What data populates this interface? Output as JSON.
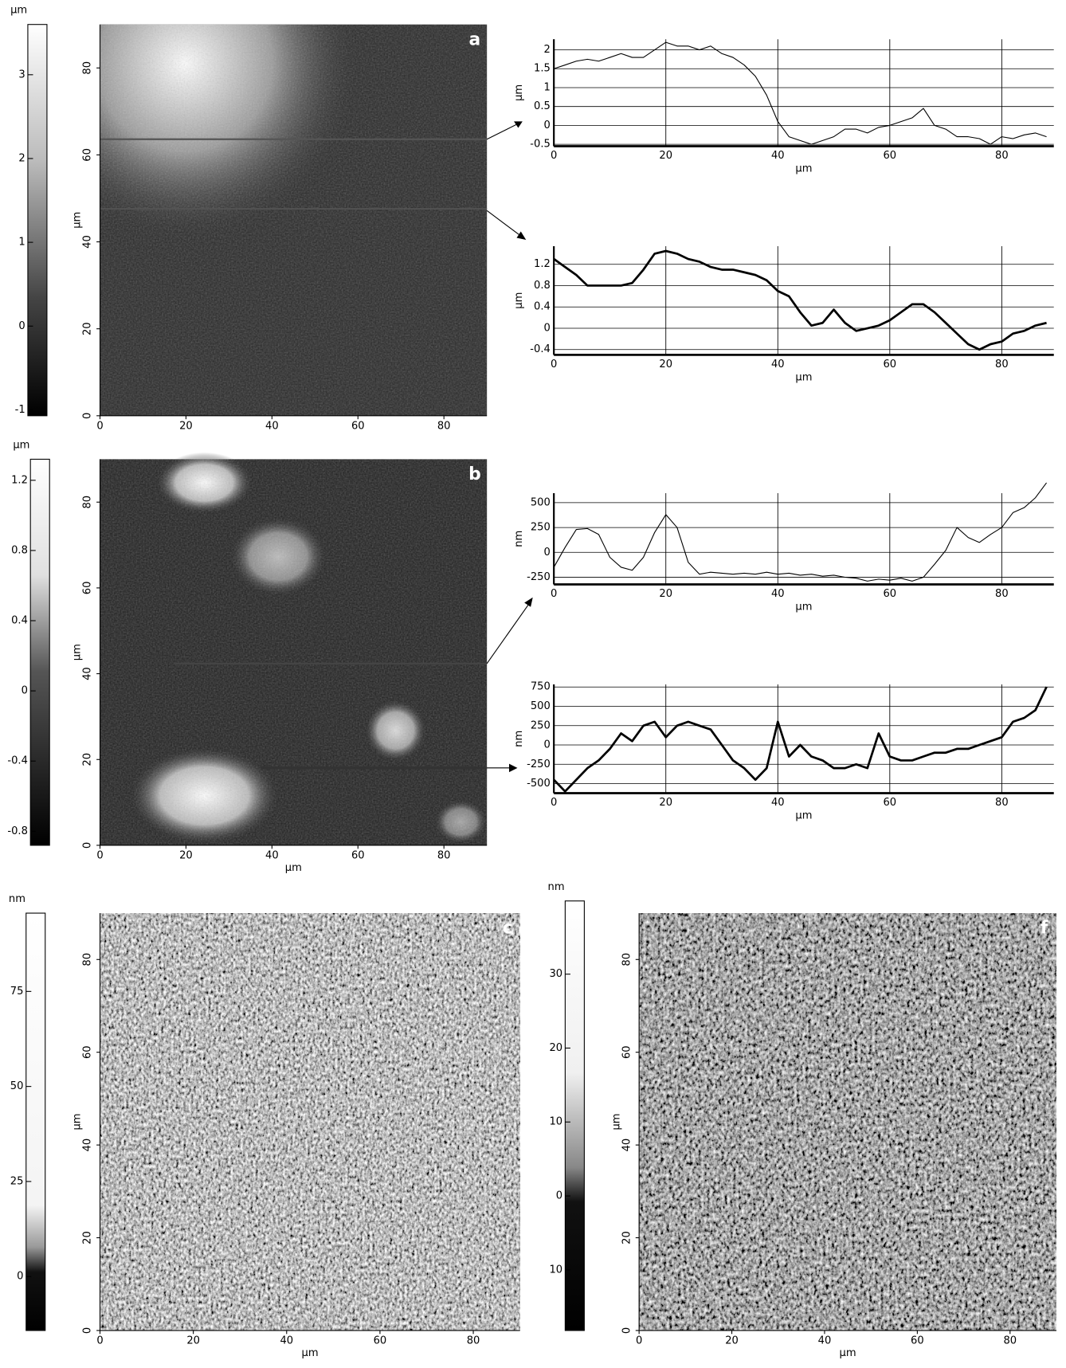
{
  "chart_data": [
    {
      "type": "colorbar",
      "unit": "µm",
      "ylim": [
        -1.07,
        3.6
      ],
      "yticks": [
        3,
        2,
        1,
        0,
        -1
      ]
    },
    {
      "type": "image",
      "label": "a",
      "ylabel": "µm",
      "xlim": [
        0,
        90
      ],
      "ylim": [
        0,
        90
      ],
      "xticks": [
        0,
        20,
        40,
        60,
        80
      ],
      "yticks": [
        0,
        20,
        40,
        60,
        80
      ]
    },
    {
      "type": "line",
      "xlabel": "µm",
      "ylabel": "µm",
      "xlim": [
        0,
        89.3
      ],
      "ylim": [
        -0.55,
        2.28
      ],
      "xticks": [
        0,
        20,
        40,
        60,
        80
      ],
      "yticks": [
        2,
        1.5,
        1,
        0.5,
        0,
        -0.5
      ],
      "grid": true,
      "x": [
        0,
        2,
        4,
        6,
        8,
        10,
        12,
        14,
        16,
        18,
        20,
        22,
        24,
        26,
        28,
        30,
        32,
        34,
        36,
        38,
        40,
        42,
        44,
        46,
        48,
        50,
        52,
        54,
        56,
        58,
        60,
        62,
        64,
        66,
        68,
        70,
        72,
        74,
        76,
        78,
        80,
        82,
        84,
        86,
        88
      ],
      "series": [
        {
          "color": "#000000",
          "values": [
            1.5,
            1.6,
            1.7,
            1.75,
            1.7,
            1.8,
            1.9,
            1.8,
            1.8,
            2.0,
            2.2,
            2.1,
            2.1,
            2.0,
            2.1,
            1.9,
            1.8,
            1.6,
            1.3,
            0.8,
            0.1,
            -0.3,
            -0.4,
            -0.5,
            -0.4,
            -0.3,
            -0.1,
            -0.1,
            -0.2,
            -0.05,
            0.0,
            0.1,
            0.2,
            0.45,
            0.0,
            -0.1,
            -0.3,
            -0.3,
            -0.35,
            -0.5,
            -0.3,
            -0.35,
            -0.25,
            -0.2,
            -0.3
          ]
        }
      ]
    },
    {
      "type": "line",
      "xlabel": "µm",
      "ylabel": "µm",
      "xlim": [
        0,
        89.3
      ],
      "ylim": [
        -0.5,
        1.54
      ],
      "xticks": [
        0,
        20,
        40,
        60,
        80
      ],
      "yticks": [
        1.2,
        0.8,
        0.4,
        0,
        -0.4
      ],
      "grid": true,
      "x": [
        0,
        2,
        4,
        6,
        8,
        10,
        12,
        14,
        16,
        18,
        20,
        22,
        24,
        26,
        28,
        30,
        32,
        34,
        36,
        38,
        40,
        42,
        44,
        46,
        48,
        50,
        52,
        54,
        56,
        58,
        60,
        62,
        64,
        66,
        68,
        70,
        72,
        74,
        76,
        78,
        80,
        82,
        84,
        86,
        88
      ],
      "series": [
        {
          "color": "#000000",
          "values": [
            1.3,
            1.15,
            1.0,
            0.8,
            0.8,
            0.8,
            0.8,
            0.85,
            1.1,
            1.4,
            1.45,
            1.4,
            1.3,
            1.25,
            1.15,
            1.1,
            1.1,
            1.05,
            1.0,
            0.9,
            0.7,
            0.6,
            0.3,
            0.05,
            0.1,
            0.35,
            0.1,
            -0.05,
            0,
            0.05,
            0.15,
            0.3,
            0.45,
            0.45,
            0.3,
            0.1,
            -0.1,
            -0.3,
            -0.4,
            -0.3,
            -0.25,
            -0.1,
            -0.05,
            0.05,
            0.1
          ]
        }
      ]
    },
    {
      "type": "colorbar",
      "unit": "µm",
      "ylim": [
        -0.88,
        1.32
      ],
      "yticks": [
        1.2,
        0.8,
        0.4,
        0,
        -0.4,
        -0.8
      ]
    },
    {
      "type": "image",
      "label": "b",
      "xlabel": "µm",
      "ylabel": "µm",
      "xlim": [
        0,
        90
      ],
      "ylim": [
        0,
        90
      ],
      "xticks": [
        0,
        20,
        40,
        60,
        80
      ],
      "yticks": [
        0,
        20,
        40,
        60,
        80
      ]
    },
    {
      "type": "line",
      "xlabel": "µm",
      "ylabel": "nm",
      "xlim": [
        0,
        89.3
      ],
      "ylim": [
        -323,
        596
      ],
      "xticks": [
        0,
        20,
        40,
        60,
        80
      ],
      "yticks": [
        500,
        250,
        0,
        -250
      ],
      "grid": true,
      "x": [
        0,
        2,
        4,
        6,
        8,
        10,
        12,
        14,
        16,
        18,
        20,
        22,
        24,
        26,
        28,
        30,
        32,
        34,
        36,
        38,
        40,
        42,
        44,
        46,
        48,
        50,
        52,
        54,
        56,
        58,
        60,
        62,
        64,
        66,
        68,
        70,
        72,
        74,
        76,
        78,
        80,
        82,
        84,
        86,
        88
      ],
      "series": [
        {
          "color": "#000000",
          "values": [
            -150,
            50,
            230,
            240,
            180,
            -50,
            -150,
            -180,
            -50,
            200,
            380,
            250,
            -100,
            -220,
            -200,
            -210,
            -220,
            -210,
            -220,
            -200,
            -220,
            -210,
            -230,
            -220,
            -240,
            -230,
            -250,
            -260,
            -290,
            -270,
            -280,
            -260,
            -290,
            -250,
            -120,
            20,
            250,
            150,
            100,
            180,
            250,
            400,
            450,
            550,
            700
          ]
        }
      ]
    },
    {
      "type": "line",
      "xlabel": "µm",
      "ylabel": "nm",
      "xlim": [
        0,
        89.3
      ],
      "ylim": [
        -623,
        783
      ],
      "xticks": [
        0,
        20,
        40,
        60,
        80
      ],
      "yticks": [
        750,
        500,
        250,
        0,
        -250,
        -500
      ],
      "grid": true,
      "x": [
        0,
        2,
        4,
        6,
        8,
        10,
        12,
        14,
        16,
        18,
        20,
        22,
        24,
        26,
        28,
        30,
        32,
        34,
        36,
        38,
        40,
        42,
        44,
        46,
        48,
        50,
        52,
        54,
        56,
        58,
        60,
        62,
        64,
        66,
        68,
        70,
        72,
        74,
        76,
        78,
        80,
        82,
        84,
        86,
        88
      ],
      "series": [
        {
          "color": "#000000",
          "values": [
            -450,
            -600,
            -450,
            -300,
            -200,
            -50,
            150,
            50,
            250,
            300,
            100,
            250,
            300,
            250,
            200,
            0,
            -200,
            -300,
            -450,
            -300,
            300,
            -150,
            0,
            -150,
            -200,
            -300,
            -300,
            -250,
            -300,
            150,
            -150,
            -200,
            -200,
            -150,
            -100,
            -100,
            -50,
            -50,
            0,
            50,
            100,
            300,
            350,
            450,
            750
          ]
        }
      ]
    },
    {
      "type": "colorbar",
      "unit": "nm",
      "ylim": [
        -14.2,
        95.6
      ],
      "yticks": [
        75,
        50,
        25,
        0
      ]
    },
    {
      "type": "image",
      "label": "c",
      "xlabel": "µm",
      "ylabel": "µm",
      "xlim": [
        0,
        90
      ],
      "ylim": [
        0,
        90
      ],
      "xticks": [
        0,
        20,
        40,
        60,
        80
      ],
      "yticks": [
        0,
        20,
        40,
        60,
        80
      ]
    },
    {
      "type": "colorbar",
      "unit": "nm",
      "ylim": [
        -18.2,
        39.9
      ],
      "yticks": [
        30,
        20,
        10,
        0,
        {
          "value": -10,
          "label": "10"
        }
      ]
    },
    {
      "type": "image",
      "label": "f",
      "xlabel": "µm",
      "ylabel": "µm",
      "xlim": [
        0,
        90
      ],
      "ylim": [
        0,
        90
      ],
      "xticks": [
        0,
        20,
        40,
        60,
        80
      ],
      "yticks": [
        0,
        20,
        40,
        60,
        80
      ]
    }
  ]
}
